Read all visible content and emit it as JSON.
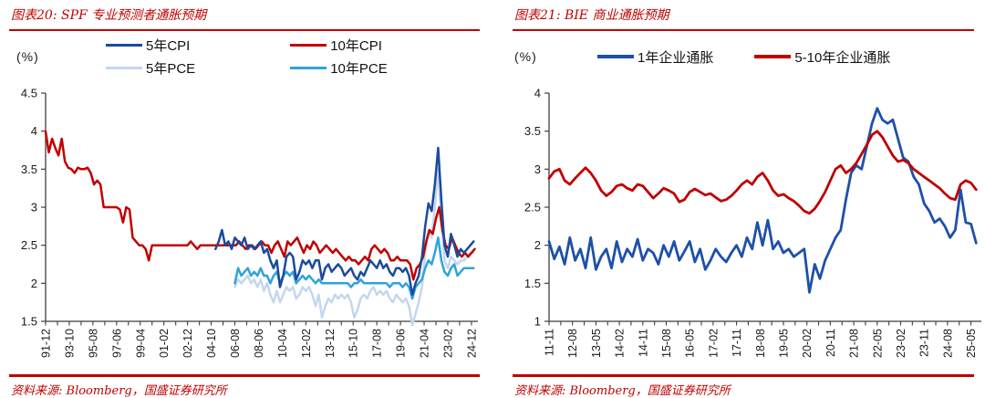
{
  "panels": [
    {
      "id": "spf",
      "title": "图表20: SPF 专业预测者通胀预期",
      "unit": "(%)",
      "source": "资料来源: Bloomberg，国盛证券研究所",
      "legend_columns": [
        [
          {
            "label": "5年CPI",
            "color": "#1A4B9C"
          },
          {
            "label": "5年PCE",
            "color": "#C3D7EF"
          }
        ],
        [
          {
            "label": "10年CPI",
            "color": "#C00000"
          },
          {
            "label": "10年PCE",
            "color": "#2FA3DC"
          }
        ]
      ]
    },
    {
      "id": "bie",
      "title": "图表21: BIE 商业通胀预期",
      "unit": "(%)",
      "source": "资料来源: Bloomberg，国盛证券研究所",
      "legend_columns": [
        [
          {
            "label": "1年企业通胀",
            "color": "#1D50A8"
          }
        ],
        [
          {
            "label": "5-10年企业通胀",
            "color": "#C00000"
          }
        ]
      ]
    }
  ],
  "chart_data": [
    {
      "type": "line",
      "title": "SPF 专业预测者通胀预期",
      "ylabel": "%",
      "legend_position": "top",
      "grid": false,
      "ylim": [
        1.5,
        4.5
      ],
      "yticks": [
        {
          "v": 4.5,
          "t": "4.5"
        },
        {
          "v": 4,
          "t": "4"
        },
        {
          "v": 3.5,
          "t": "3.5"
        },
        {
          "v": 3,
          "t": "3"
        },
        {
          "v": 2.5,
          "t": "2.5"
        },
        {
          "v": 2,
          "t": "2"
        },
        {
          "v": 1.5,
          "t": "1.5"
        }
      ],
      "x_unit": "months since 1991-12, quarterly data",
      "xlim": [
        0,
        402
      ],
      "xstep": 22,
      "xticks": [
        "91-12",
        "93-10",
        "95-08",
        "97-06",
        "99-04",
        "01-02",
        "02-12",
        "04-10",
        "06-08",
        "08-06",
        "10-04",
        "12-02",
        "13-12",
        "15-10",
        "17-08",
        "19-06",
        "21-04",
        "23-02",
        "24-12"
      ],
      "series": [
        {
          "name": "5年PCE",
          "color": "#C3D7EF",
          "x0": 176,
          "dx": 3,
          "values": [
            1.95,
            2.05,
            2.0,
            2.05,
            2.1,
            2.0,
            2.05,
            1.95,
            2.05,
            1.9,
            2.0,
            1.85,
            1.75,
            1.9,
            1.75,
            1.85,
            1.95,
            1.9,
            1.95,
            1.8,
            1.85,
            1.95,
            1.9,
            1.95,
            1.85,
            1.7,
            1.85,
            1.55,
            1.7,
            1.8,
            1.75,
            1.85,
            1.8,
            1.85,
            1.8,
            1.85,
            1.75,
            1.55,
            1.65,
            1.8,
            1.85,
            1.8,
            1.9,
            1.95,
            1.85,
            1.9,
            1.85,
            1.9,
            1.8,
            1.75,
            1.85,
            1.8,
            1.75,
            1.8,
            1.7,
            1.45,
            1.6,
            1.75,
            1.95,
            2.4,
            2.7,
            2.6,
            3.0,
            3.5,
            2.8,
            2.3,
            2.2,
            2.35,
            2.3,
            2.25,
            2.3,
            2.3,
            2.35,
            2.4,
            2.4
          ]
        },
        {
          "name": "10年PCE",
          "color": "#2FA3DC",
          "x0": 176,
          "dx": 3,
          "values": [
            2.0,
            2.2,
            2.1,
            2.15,
            2.2,
            2.1,
            2.15,
            2.1,
            2.2,
            2.1,
            2.1,
            2.0,
            2.1,
            2.15,
            2.0,
            2.1,
            2.15,
            2.1,
            2.15,
            2.0,
            2.05,
            2.1,
            2.05,
            2.1,
            2.05,
            2.0,
            2.05,
            2.0,
            2.0,
            2.0,
            2.0,
            2.0,
            2.0,
            2.0,
            2.0,
            2.0,
            1.95,
            2.0,
            2.0,
            2.05,
            2.0,
            2.0,
            2.0,
            2.0,
            2.0,
            2.0,
            2.0,
            2.0,
            1.95,
            2.0,
            2.0,
            2.0,
            1.95,
            2.0,
            1.95,
            1.8,
            1.95,
            2.0,
            2.05,
            2.2,
            2.3,
            2.25,
            2.4,
            2.6,
            2.3,
            2.15,
            2.1,
            2.2,
            2.25,
            2.1,
            2.15,
            2.2,
            2.2,
            2.2,
            2.2
          ]
        },
        {
          "name": "10年CPI",
          "color": "#C00000",
          "x0": 0,
          "dx": 3,
          "values": [
            4.0,
            3.72,
            3.9,
            3.78,
            3.68,
            3.9,
            3.6,
            3.52,
            3.5,
            3.45,
            3.52,
            3.5,
            3.5,
            3.52,
            3.45,
            3.3,
            3.35,
            3.3,
            3.0,
            3.0,
            3.0,
            3.0,
            3.0,
            2.97,
            2.8,
            3.0,
            2.97,
            2.6,
            2.55,
            2.5,
            2.5,
            2.45,
            2.3,
            2.5,
            2.5,
            2.5,
            2.5,
            2.5,
            2.5,
            2.5,
            2.5,
            2.5,
            2.5,
            2.5,
            2.5,
            2.55,
            2.5,
            2.45,
            2.5,
            2.5,
            2.5,
            2.5,
            2.5,
            2.5,
            2.5,
            2.5,
            2.5,
            2.5,
            2.5,
            2.5,
            2.55,
            2.5,
            2.45,
            2.5,
            2.5,
            2.45,
            2.5,
            2.55,
            2.5,
            2.5,
            2.4,
            2.5,
            2.55,
            2.45,
            2.35,
            2.55,
            2.5,
            2.55,
            2.6,
            2.5,
            2.4,
            2.5,
            2.45,
            2.55,
            2.5,
            2.4,
            2.45,
            2.5,
            2.45,
            2.4,
            2.45,
            2.4,
            2.35,
            2.3,
            2.35,
            2.3,
            2.3,
            2.25,
            2.3,
            2.35,
            2.3,
            2.45,
            2.5,
            2.45,
            2.4,
            2.45,
            2.4,
            2.3,
            2.3,
            2.35,
            2.3,
            2.3,
            2.3,
            2.25,
            2.05,
            2.2,
            2.25,
            2.35,
            2.55,
            2.7,
            2.65,
            2.85,
            3.0,
            2.7,
            2.5,
            2.45,
            2.6,
            2.5,
            2.4,
            2.35,
            2.4,
            2.35,
            2.4,
            2.45
          ]
        },
        {
          "name": "5年CPI",
          "color": "#1A4B9C",
          "x0": 158,
          "dx": 3,
          "values": [
            2.45,
            2.55,
            2.7,
            2.5,
            2.55,
            2.45,
            2.6,
            2.55,
            2.5,
            2.6,
            2.45,
            2.5,
            2.45,
            2.5,
            2.55,
            2.4,
            2.45,
            2.3,
            2.2,
            2.3,
            1.95,
            2.1,
            2.35,
            2.4,
            2.35,
            2.05,
            2.15,
            2.3,
            2.25,
            2.3,
            2.2,
            2.3,
            2.3,
            2.05,
            2.2,
            2.25,
            2.15,
            2.2,
            2.25,
            2.2,
            2.1,
            2.15,
            2.2,
            2.1,
            2.05,
            2.15,
            2.1,
            2.2,
            2.3,
            2.25,
            2.2,
            2.3,
            2.2,
            2.25,
            2.15,
            2.1,
            2.2,
            2.2,
            2.15,
            2.2,
            2.1,
            1.85,
            2.0,
            2.1,
            2.35,
            2.75,
            3.05,
            2.95,
            3.3,
            3.78,
            3.1,
            2.5,
            2.35,
            2.65,
            2.5,
            2.35,
            2.45,
            2.4,
            2.45,
            2.5,
            2.55
          ]
        }
      ]
    },
    {
      "type": "line",
      "title": "BIE 商业通胀预期",
      "ylabel": "%",
      "legend_position": "top",
      "grid": false,
      "ylim": [
        1,
        4
      ],
      "yticks": [
        {
          "v": 4,
          "t": "4"
        },
        {
          "v": 3.5,
          "t": "3.5"
        },
        {
          "v": 3,
          "t": "3"
        },
        {
          "v": 2.5,
          "t": "2.5"
        },
        {
          "v": 2,
          "t": "2"
        },
        {
          "v": 1.5,
          "t": "1.5"
        },
        {
          "v": 1,
          "t": "1"
        }
      ],
      "x_unit": "months since 2011-11, monthly data",
      "xlim": [
        0,
        166
      ],
      "xstep": 9,
      "xticks": [
        "11-11",
        "12-08",
        "13-05",
        "14-02",
        "14-11",
        "15-08",
        "16-05",
        "17-02",
        "17-11",
        "18-08",
        "19-05",
        "20-02",
        "20-11",
        "21-08",
        "22-05",
        "23-02",
        "23-11",
        "24-08",
        "25-05"
      ],
      "series": [
        {
          "name": "1年企业通胀",
          "color": "#1D50A8",
          "x0": 0,
          "dx": 2,
          "values": [
            2.05,
            1.82,
            1.98,
            1.75,
            2.1,
            1.8,
            1.95,
            1.7,
            2.1,
            1.68,
            1.85,
            1.95,
            1.7,
            2.05,
            1.78,
            1.95,
            1.85,
            2.08,
            1.8,
            1.95,
            1.9,
            1.75,
            2.0,
            1.85,
            2.05,
            1.8,
            1.92,
            2.05,
            1.78,
            1.95,
            1.68,
            1.8,
            1.95,
            1.85,
            1.78,
            1.9,
            2.0,
            1.85,
            2.1,
            1.95,
            2.3,
            2.0,
            2.33,
            1.95,
            2.05,
            1.9,
            1.95,
            1.85,
            1.9,
            1.95,
            1.38,
            1.75,
            1.56,
            1.8,
            1.95,
            2.1,
            2.2,
            2.6,
            2.95,
            3.05,
            3.0,
            3.3,
            3.6,
            3.8,
            3.65,
            3.6,
            3.65,
            3.4,
            3.15,
            3.1,
            2.9,
            2.8,
            2.55,
            2.45,
            2.3,
            2.35,
            2.25,
            2.1,
            2.2,
            2.73,
            2.3,
            2.28,
            2.03
          ]
        },
        {
          "name": "5-10年企业通胀",
          "color": "#C00000",
          "x0": 0,
          "dx": 2,
          "values": [
            2.88,
            2.97,
            3.0,
            2.85,
            2.8,
            2.88,
            2.95,
            3.02,
            2.95,
            2.85,
            2.72,
            2.65,
            2.7,
            2.78,
            2.8,
            2.75,
            2.72,
            2.8,
            2.78,
            2.7,
            2.62,
            2.68,
            2.75,
            2.72,
            2.68,
            2.57,
            2.6,
            2.7,
            2.74,
            2.7,
            2.66,
            2.68,
            2.63,
            2.58,
            2.6,
            2.65,
            2.72,
            2.8,
            2.85,
            2.8,
            2.9,
            2.95,
            2.85,
            2.72,
            2.65,
            2.67,
            2.62,
            2.58,
            2.52,
            2.45,
            2.42,
            2.48,
            2.58,
            2.7,
            2.85,
            3.0,
            3.05,
            2.95,
            3.0,
            3.08,
            3.2,
            3.32,
            3.45,
            3.5,
            3.42,
            3.3,
            3.18,
            3.1,
            3.12,
            3.08,
            3.0,
            2.95,
            2.9,
            2.85,
            2.8,
            2.75,
            2.68,
            2.62,
            2.6,
            2.8,
            2.85,
            2.82,
            2.73
          ]
        }
      ]
    }
  ]
}
